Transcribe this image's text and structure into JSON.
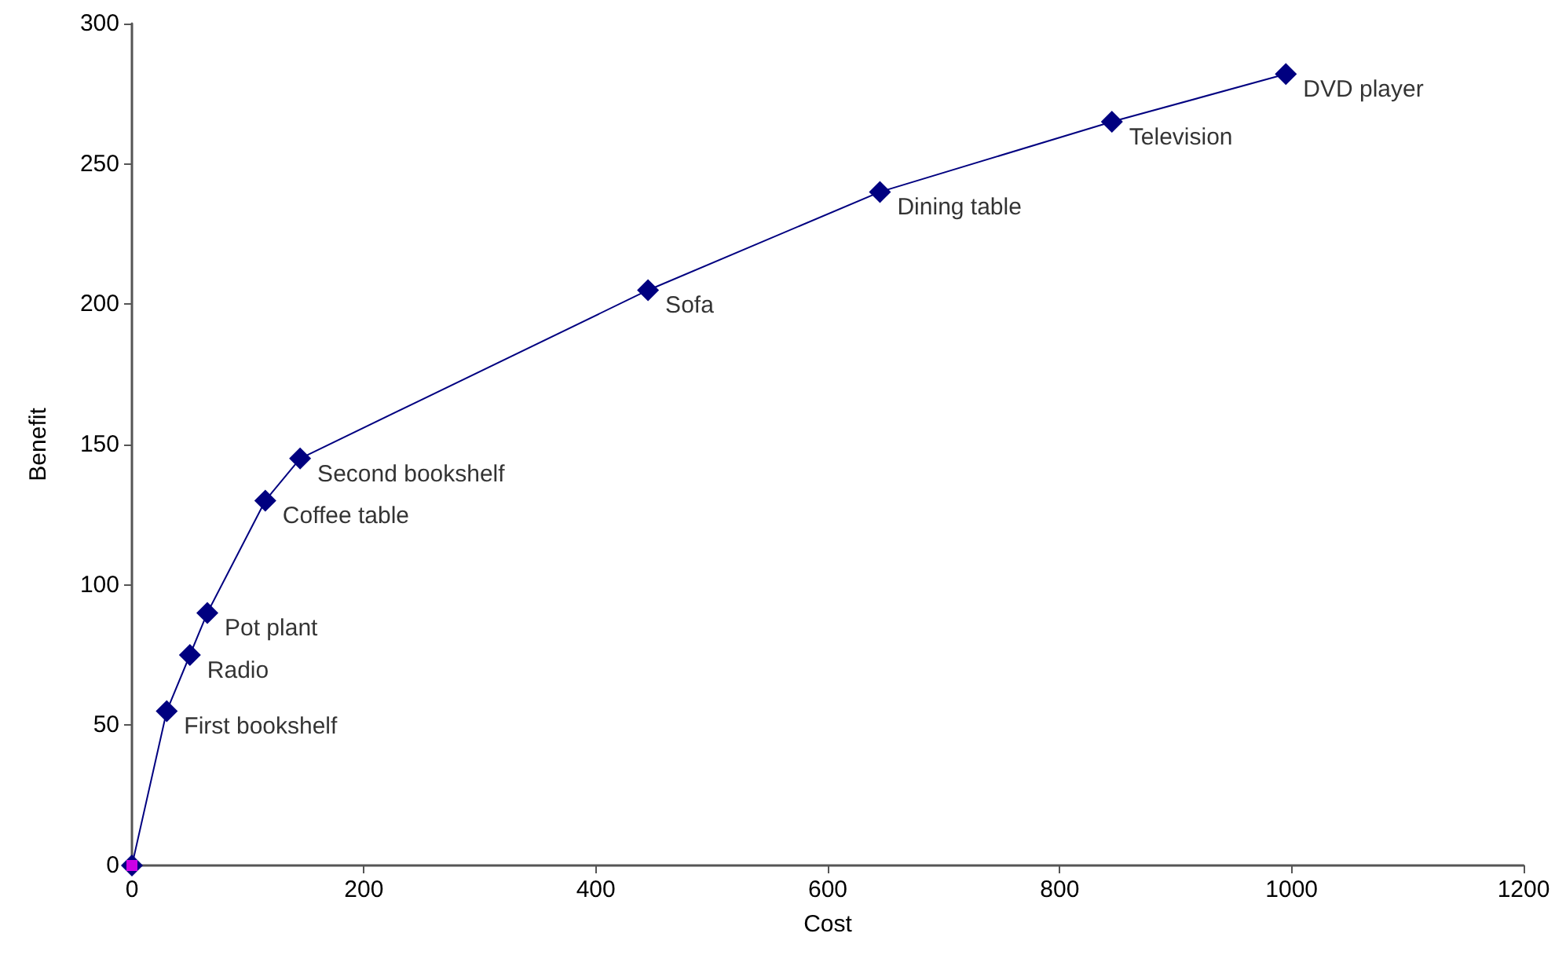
{
  "chart_data": {
    "type": "line",
    "xlabel": "Cost",
    "ylabel": "Benefit",
    "x": [
      0,
      30,
      50,
      65,
      115,
      145,
      445,
      645,
      845,
      995
    ],
    "series": [
      {
        "color": "#000080",
        "values": [
          0,
          55,
          75,
          90,
          130,
          145,
          205,
          240,
          265,
          282
        ],
        "marker": "diamond"
      },
      {
        "type": "scatter",
        "color": "#ff00ff",
        "x": [
          0
        ],
        "values": [
          0
        ],
        "marker": "square"
      }
    ],
    "annotations": [
      {
        "text": "First bookshelf",
        "x": 30,
        "y": 55
      },
      {
        "text": "Radio",
        "x": 50,
        "y": 75
      },
      {
        "text": "Pot plant",
        "x": 65,
        "y": 90
      },
      {
        "text": "Coffee table",
        "x": 115,
        "y": 130
      },
      {
        "text": "Second bookshelf",
        "x": 145,
        "y": 145
      },
      {
        "text": "Sofa",
        "x": 445,
        "y": 205
      },
      {
        "text": "Dining table",
        "x": 645,
        "y": 240
      },
      {
        "text": "Television",
        "x": 845,
        "y": 265
      },
      {
        "text": "DVD player",
        "x": 995,
        "y": 282
      }
    ],
    "xlim": [
      0,
      1200
    ],
    "xticks": [
      0,
      200,
      400,
      600,
      800,
      1000,
      1200
    ],
    "ylim": [
      0,
      300
    ],
    "yticks": [
      0,
      50,
      100,
      150,
      200,
      250,
      300
    ],
    "grid": false
  }
}
